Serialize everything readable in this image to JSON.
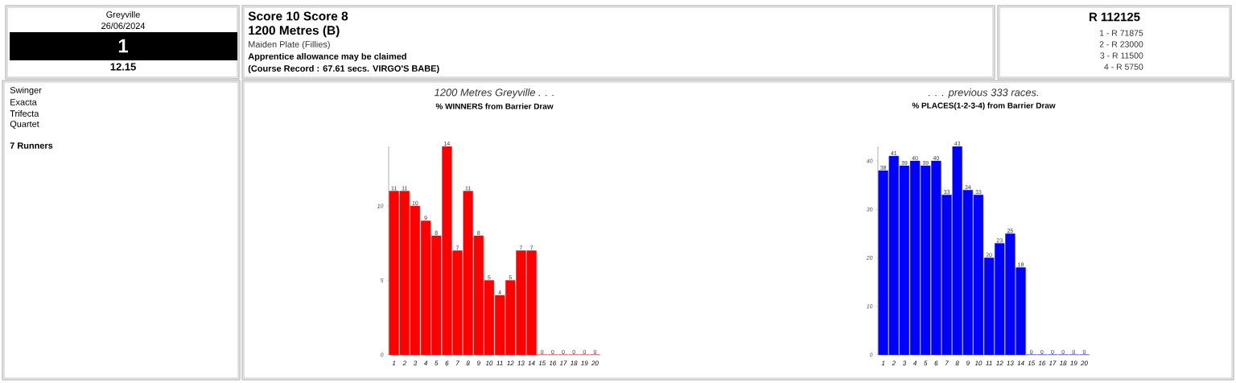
{
  "chart_data": [
    {
      "type": "other",
      "annotations": [
        "Greyville",
        "26/06/2024",
        "1",
        "12.15",
        "Score 10 Score 8",
        "1200 Metres (B)",
        "Maiden Plate (Fillies)",
        "Apprentice allowance may be claimed",
        "(Course Record : 67.61 secs. VIRGO'S BABE)",
        "R 112125",
        "1 - R   71875",
        "2 - R   23000",
        "3 - R   11500",
        "4 - R    5750",
        "Swinger",
        "Exacta",
        "Trifecta",
        "Quartet",
        "7 Runners"
      ]
    },
    {
      "type": "bar",
      "title": "1200 Metres Greyville . . .",
      "subtitle": "% WINNERS from Barrier Draw",
      "categories": [
        "1",
        "2",
        "3",
        "4",
        "5",
        "6",
        "7",
        "8",
        "9",
        "10",
        "11",
        "12",
        "13",
        "14",
        "15",
        "16",
        "17",
        "18",
        "19",
        "20"
      ],
      "values": [
        11,
        11,
        10,
        9,
        8,
        14,
        7,
        11,
        8,
        5,
        4,
        5,
        7,
        7,
        0,
        0,
        0,
        0,
        0,
        0
      ],
      "color": "#ff0000",
      "ylim": [
        0,
        14
      ],
      "yticks": [
        0,
        5,
        10
      ],
      "data_labels": true
    },
    {
      "type": "bar",
      "title": ". . . previous 333 races.",
      "subtitle": "% PLACES(1-2-3-4) from Barrier Draw",
      "categories": [
        "1",
        "2",
        "3",
        "4",
        "5",
        "6",
        "7",
        "8",
        "9",
        "10",
        "11",
        "12",
        "13",
        "14",
        "15",
        "16",
        "17",
        "18",
        "19",
        "20"
      ],
      "values": [
        38,
        41,
        39,
        40,
        39,
        40,
        33,
        43,
        34,
        33,
        20,
        23,
        25,
        18,
        0,
        0,
        0,
        0,
        0,
        0
      ],
      "color": "#0000ff",
      "ylim": [
        0,
        43
      ],
      "yticks": [
        0,
        10,
        20,
        30,
        40
      ],
      "data_labels": true
    }
  ]
}
